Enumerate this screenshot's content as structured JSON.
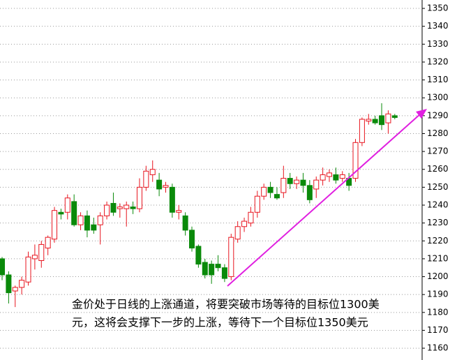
{
  "chart_data": {
    "type": "candlestick",
    "open": [
      1210,
      1201,
      1192,
      1194,
      1197,
      1210,
      1209,
      1216,
      1221,
      1236,
      1236,
      1242,
      1229,
      1234,
      1229,
      1229,
      1234,
      1241,
      1238,
      1238,
      1239,
      1238,
      1250,
      1257,
      1254,
      1250,
      1250,
      1236,
      1234,
      1226,
      1217,
      1208,
      1207,
      1207,
      1205,
      1200,
      1221,
      1228,
      1230,
      1236,
      1245,
      1250,
      1246,
      1247,
      1255,
      1252,
      1254,
      1251,
      1249,
      1254,
      1256,
      1257,
      1255,
      1255,
      1255,
      1275,
      1287,
      1288,
      1290,
      1286,
      1290
    ],
    "high": [
      1211,
      1203,
      1195,
      1200,
      1214,
      1218,
      1220,
      1223,
      1239,
      1238,
      1246,
      1246,
      1236,
      1237,
      1233,
      1236,
      1242,
      1247,
      1241,
      1242,
      1242,
      1255,
      1262,
      1265,
      1258,
      1253,
      1252,
      1240,
      1236,
      1228,
      1218,
      1210,
      1209,
      1212,
      1207,
      1224,
      1231,
      1233,
      1239,
      1248,
      1252,
      1253,
      1250,
      1262,
      1258,
      1256,
      1258,
      1254,
      1256,
      1261,
      1260,
      1261,
      1259,
      1258,
      1277,
      1289,
      1291,
      1290,
      1297,
      1293,
      1291
    ],
    "low": [
      1198,
      1185,
      1183,
      1190,
      1195,
      1204,
      1205,
      1212,
      1219,
      1232,
      1232,
      1228,
      1226,
      1222,
      1224,
      1218,
      1232,
      1234,
      1233,
      1228,
      1235,
      1236,
      1248,
      1253,
      1245,
      1247,
      1233,
      1232,
      1223,
      1214,
      1205,
      1199,
      1196,
      1203,
      1197,
      1198,
      1219,
      1225,
      1228,
      1233,
      1243,
      1244,
      1243,
      1244,
      1249,
      1249,
      1247,
      1241,
      1244,
      1251,
      1253,
      1252,
      1253,
      1248,
      1253,
      1273,
      1285,
      1285,
      1282,
      1280,
      1288
    ],
    "close": [
      1201,
      1191,
      1194,
      1198,
      1211,
      1212,
      1218,
      1222,
      1237,
      1235,
      1244,
      1229,
      1234,
      1226,
      1226,
      1234,
      1240,
      1236,
      1239,
      1240,
      1238,
      1250,
      1259,
      1260,
      1249,
      1251,
      1236,
      1237,
      1226,
      1216,
      1207,
      1201,
      1201,
      1205,
      1199,
      1222,
      1228,
      1231,
      1236,
      1245,
      1250,
      1247,
      1244,
      1255,
      1252,
      1254,
      1251,
      1243,
      1254,
      1257,
      1258,
      1254,
      1257,
      1251,
      1275,
      1288,
      1288,
      1286,
      1285,
      1291,
      1289
    ],
    "up_color": "#e8141e",
    "down_color": "#0a8a0a",
    "ylim": [
      1153.4,
      1354.7
    ],
    "yticks": [
      1160,
      1170,
      1180,
      1190,
      1200,
      1210,
      1220,
      1230,
      1240,
      1250,
      1260,
      1270,
      1280,
      1290,
      1300,
      1310,
      1320,
      1330,
      1340,
      1350
    ],
    "grid": true,
    "annotation": [
      "金价处于日线的上涨通道，将要突破市场等待的目标位1300美",
      "元，这将会支撑下一步的上涨，等待下一个目标位1350美元"
    ]
  }
}
